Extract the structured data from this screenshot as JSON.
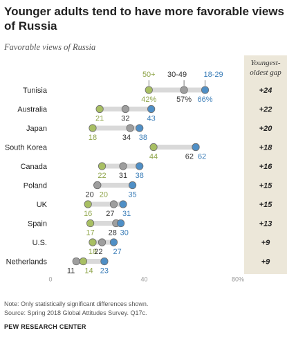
{
  "header": {
    "title": "Younger adults tend to have more favorable views of Russia",
    "subtitle": "Favorable views of Russia"
  },
  "gap_header": "Youngest-oldest gap",
  "colors": {
    "young": "#4f8fc6",
    "mid": "#9e9e9e",
    "old": "#a8bf63",
    "young_text": "#3a7db8",
    "old_text": "#8fa54a",
    "bar": "#d9d9d9",
    "gap_bg": "#ece7d9"
  },
  "chart_data": {
    "type": "dot",
    "title": "Younger adults tend to have more favorable views of Russia",
    "subtitle": "Favorable views of Russia",
    "xlim": [
      0,
      80
    ],
    "x_ticks": [
      "0",
      "40",
      "80%"
    ],
    "series": [
      {
        "name": "50+",
        "values": [
          42,
          21,
          18,
          44,
          22,
          20,
          16,
          17,
          18,
          14
        ]
      },
      {
        "name": "30-49",
        "values": [
          57,
          32,
          34,
          62,
          31,
          20,
          27,
          28,
          22,
          11
        ]
      },
      {
        "name": "18-29",
        "values": [
          66,
          43,
          38,
          62,
          38,
          35,
          31,
          30,
          27,
          23
        ]
      }
    ],
    "categories": [
      "Tunisia",
      "Australia",
      "Japan",
      "South Korea",
      "Canada",
      "Poland",
      "UK",
      "Spain",
      "U.S.",
      "Netherlands"
    ],
    "value_labels": {
      "old": [
        "42%",
        "21",
        "18",
        "44",
        "22",
        "20",
        "16",
        "17",
        "18",
        "14"
      ],
      "mid": [
        "57%",
        "32",
        "34",
        "62",
        "31",
        "20",
        "27",
        "28",
        "22",
        "11"
      ],
      "young": [
        "66%",
        "43",
        "38",
        "62",
        "38",
        "35",
        "31",
        "30",
        "27",
        "23"
      ]
    },
    "gaps": [
      "+24",
      "+22",
      "+20",
      "+18",
      "+16",
      "+15",
      "+15",
      "+13",
      "+9",
      "+9"
    ]
  },
  "footer": {
    "note": "Note: Only statistically significant differences shown.",
    "source": "Source: Spring 2018 Global Attitudes Survey. Q17c.",
    "org": "PEW RESEARCH CENTER"
  }
}
